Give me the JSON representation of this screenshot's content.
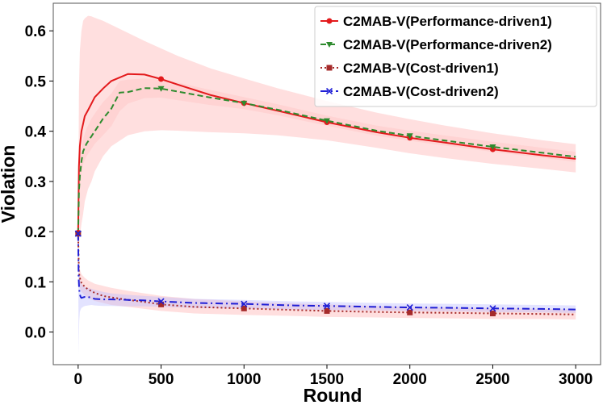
{
  "chart_data": {
    "type": "line",
    "xlabel": "Round",
    "ylabel": "Violation",
    "xlim": [
      -150,
      3150
    ],
    "ylim": [
      -0.065,
      0.655
    ],
    "xticks": [
      0,
      500,
      1000,
      1500,
      2000,
      2500,
      3000
    ],
    "yticks": [
      0.0,
      0.1,
      0.2,
      0.3,
      0.4,
      0.5,
      0.6
    ],
    "ytick_labels": [
      "0.0",
      "0.1",
      "0.2",
      "0.3",
      "0.4",
      "0.5",
      "0.6"
    ],
    "grid": false,
    "legend_position": "top-right",
    "series": [
      {
        "name": "C2MAB-V(Performance-driven1)",
        "color": "#e31a1c",
        "line_style": "solid",
        "marker": "circle",
        "marker_x": [
          0,
          500,
          1000,
          1500,
          2000,
          2500
        ],
        "x": [
          0,
          5,
          10,
          20,
          30,
          40,
          60,
          80,
          100,
          150,
          200,
          300,
          400,
          500,
          600,
          800,
          1000,
          1200,
          1500,
          1800,
          2000,
          2200,
          2500,
          2800,
          3000
        ],
        "y": [
          0.198,
          0.33,
          0.37,
          0.4,
          0.415,
          0.43,
          0.442,
          0.455,
          0.468,
          0.485,
          0.5,
          0.514,
          0.513,
          0.504,
          0.493,
          0.472,
          0.456,
          0.441,
          0.418,
          0.398,
          0.387,
          0.378,
          0.364,
          0.352,
          0.345
        ],
        "band_upper": [
          0.2,
          0.48,
          0.56,
          0.6,
          0.62,
          0.625,
          0.63,
          0.629,
          0.626,
          0.62,
          0.612,
          0.596,
          0.58,
          0.565,
          0.55,
          0.525,
          0.505,
          0.486,
          0.46,
          0.437,
          0.424,
          0.412,
          0.396,
          0.382,
          0.374
        ],
        "band_lower": [
          0.19,
          0.17,
          0.19,
          0.215,
          0.235,
          0.26,
          0.285,
          0.3,
          0.32,
          0.35,
          0.37,
          0.392,
          0.4,
          0.402,
          0.401,
          0.398,
          0.396,
          0.392,
          0.382,
          0.367,
          0.356,
          0.347,
          0.335,
          0.325,
          0.318
        ]
      },
      {
        "name": "C2MAB-V(Performance-driven2)",
        "color": "#2e8b2e",
        "line_style": "dashed",
        "marker": "triangle-down",
        "marker_x": [
          0,
          500,
          1000,
          1500,
          2000,
          2500
        ],
        "x": [
          0,
          5,
          10,
          20,
          30,
          50,
          80,
          100,
          150,
          200,
          250,
          300,
          400,
          500,
          600,
          800,
          1000,
          1200,
          1500,
          1800,
          2000,
          2200,
          2500,
          2800,
          3000
        ],
        "y": [
          0.196,
          0.28,
          0.31,
          0.34,
          0.36,
          0.375,
          0.39,
          0.4,
          0.425,
          0.445,
          0.477,
          0.478,
          0.486,
          0.485,
          0.479,
          0.467,
          0.456,
          0.443,
          0.421,
          0.401,
          0.391,
          0.382,
          0.369,
          0.357,
          0.349
        ],
        "band_upper": [
          0.2,
          0.3,
          0.33,
          0.36,
          0.385,
          0.405,
          0.425,
          0.435,
          0.458,
          0.475,
          0.5,
          0.503,
          0.505,
          0.503,
          0.497,
          0.482,
          0.468,
          0.454,
          0.431,
          0.411,
          0.401,
          0.392,
          0.379,
          0.367,
          0.359
        ],
        "band_lower": [
          0.19,
          0.255,
          0.285,
          0.315,
          0.335,
          0.35,
          0.365,
          0.375,
          0.392,
          0.41,
          0.44,
          0.455,
          0.466,
          0.467,
          0.462,
          0.452,
          0.444,
          0.432,
          0.411,
          0.391,
          0.381,
          0.372,
          0.359,
          0.347,
          0.339
        ]
      },
      {
        "name": "C2MAB-V(Cost-driven1)",
        "color": "#a52a2a",
        "line_style": "dotted",
        "marker": "square",
        "marker_x": [
          0,
          500,
          1000,
          1500,
          2000,
          2500
        ],
        "x": [
          0,
          5,
          10,
          20,
          40,
          60,
          100,
          150,
          200,
          300,
          400,
          500,
          700,
          1000,
          1300,
          1500,
          1800,
          2000,
          2300,
          2500,
          2800,
          3000
        ],
        "y": [
          0.196,
          0.118,
          0.108,
          0.098,
          0.09,
          0.085,
          0.078,
          0.072,
          0.069,
          0.064,
          0.06,
          0.055,
          0.05,
          0.047,
          0.044,
          0.042,
          0.04,
          0.039,
          0.038,
          0.037,
          0.036,
          0.035
        ],
        "band_upper": [
          0.2,
          0.135,
          0.125,
          0.115,
          0.108,
          0.103,
          0.096,
          0.092,
          0.088,
          0.082,
          0.077,
          0.072,
          0.066,
          0.061,
          0.057,
          0.055,
          0.052,
          0.05,
          0.049,
          0.048,
          0.046,
          0.045
        ],
        "band_lower": [
          0.19,
          0.095,
          0.088,
          0.08,
          0.073,
          0.068,
          0.062,
          0.058,
          0.054,
          0.05,
          0.046,
          0.042,
          0.037,
          0.034,
          0.032,
          0.03,
          0.029,
          0.028,
          0.027,
          0.026,
          0.026,
          0.025
        ]
      },
      {
        "name": "C2MAB-V(Cost-driven2)",
        "color": "#1f1fd6",
        "line_style": "dashdot",
        "marker": "x",
        "marker_x": [
          0,
          500,
          1000,
          1500,
          2000,
          2500
        ],
        "x": [
          0,
          3,
          6,
          10,
          15,
          20,
          30,
          40,
          60,
          80,
          100,
          150,
          200,
          300,
          400,
          500,
          700,
          1000,
          1300,
          1500,
          1800,
          2000,
          2300,
          2500,
          2800,
          3000
        ],
        "y": [
          0.196,
          0.11,
          0.085,
          0.075,
          0.07,
          0.068,
          0.069,
          0.07,
          0.07,
          0.068,
          0.066,
          0.065,
          0.065,
          0.064,
          0.063,
          0.061,
          0.058,
          0.056,
          0.053,
          0.052,
          0.05,
          0.049,
          0.048,
          0.047,
          0.046,
          0.045
        ],
        "band_upper": [
          0.2,
          0.14,
          0.12,
          0.11,
          0.1,
          0.096,
          0.092,
          0.09,
          0.088,
          0.086,
          0.084,
          0.08,
          0.077,
          0.074,
          0.072,
          0.07,
          0.066,
          0.064,
          0.061,
          0.06,
          0.058,
          0.057,
          0.056,
          0.055,
          0.054,
          0.053
        ],
        "band_lower": [
          0.19,
          -0.045,
          0.02,
          0.04,
          0.045,
          0.048,
          0.05,
          0.052,
          0.053,
          0.054,
          0.053,
          0.052,
          0.052,
          0.051,
          0.051,
          0.05,
          0.048,
          0.047,
          0.045,
          0.044,
          0.043,
          0.042,
          0.041,
          0.04,
          0.039,
          0.038
        ]
      }
    ],
    "band_color": "#ffb0b0"
  }
}
